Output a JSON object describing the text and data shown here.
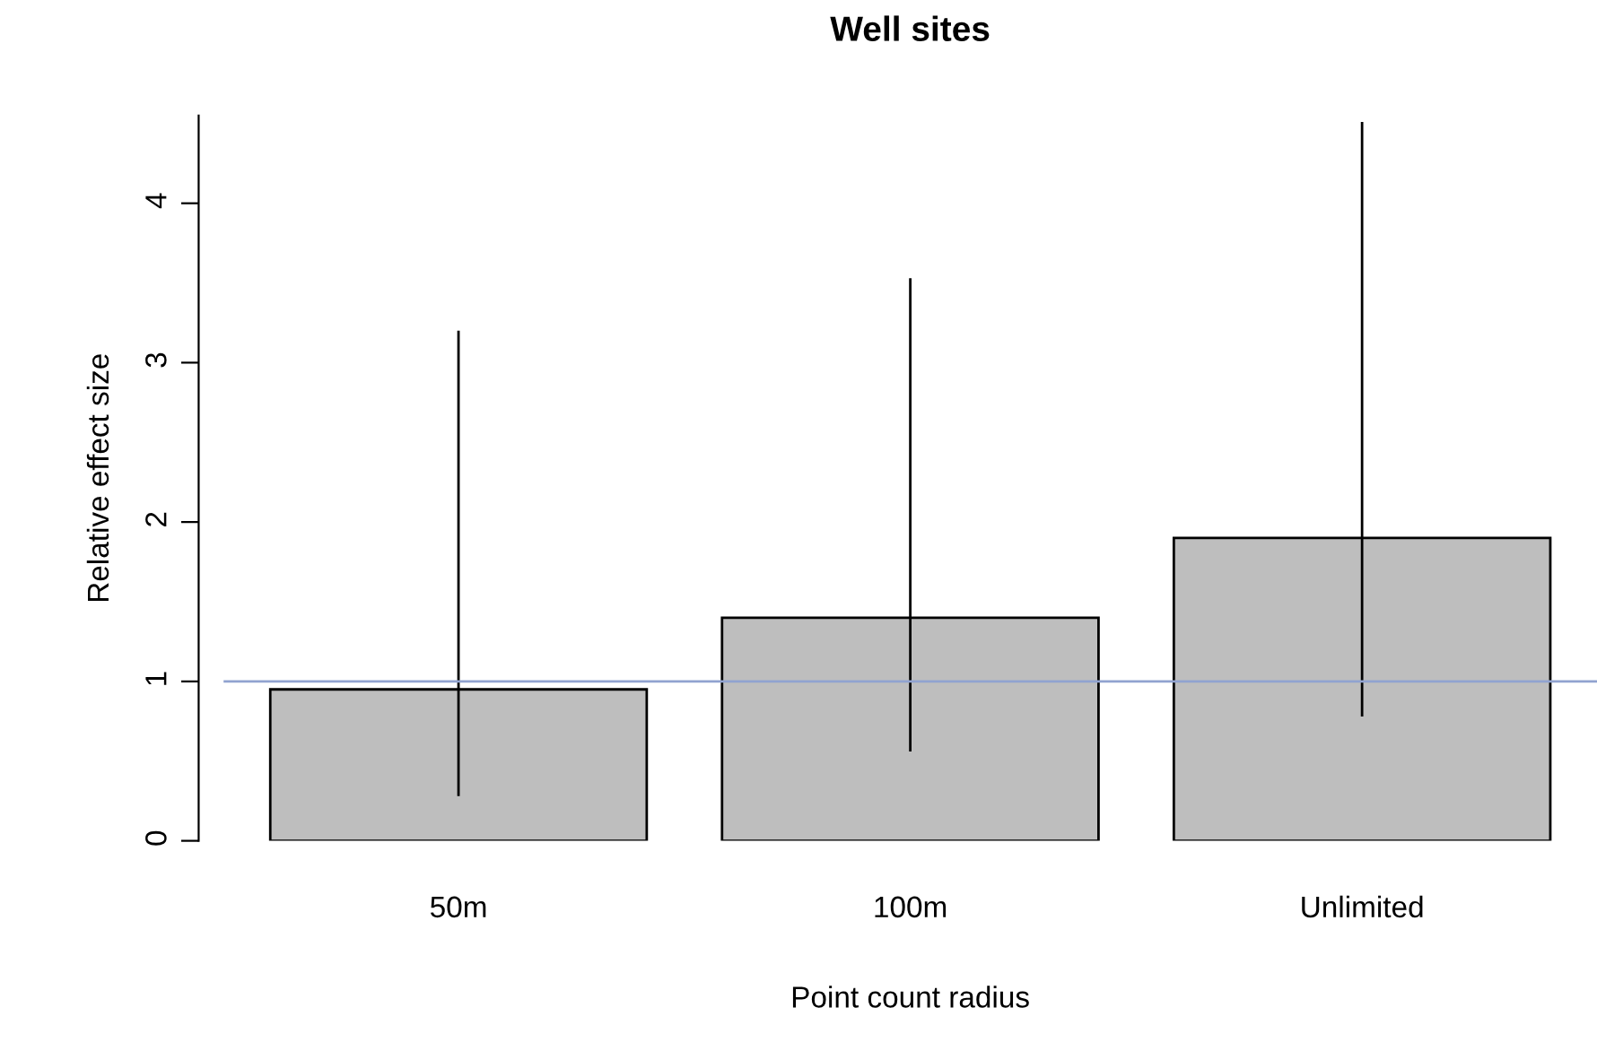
{
  "chart_data": {
    "type": "bar",
    "title": "Well sites",
    "xlabel": "Point count radius",
    "ylabel": "Relative effect size",
    "categories": [
      "50m",
      "100m",
      "Unlimited"
    ],
    "series": [
      {
        "color": "#bebebe",
        "values": [
          0.95,
          1.4,
          1.9
        ],
        "errors": [
          [
            0.28,
            3.2
          ],
          [
            0.56,
            3.53
          ],
          [
            0.78,
            4.51
          ]
        ]
      }
    ],
    "ylim": [
      0,
      4.55
    ],
    "yticks": [
      0,
      1,
      2,
      3,
      4
    ],
    "ref_lines": [
      {
        "axis": "y",
        "value": 1,
        "color": "#91a3d0"
      }
    ],
    "grid": false,
    "legend": false
  }
}
